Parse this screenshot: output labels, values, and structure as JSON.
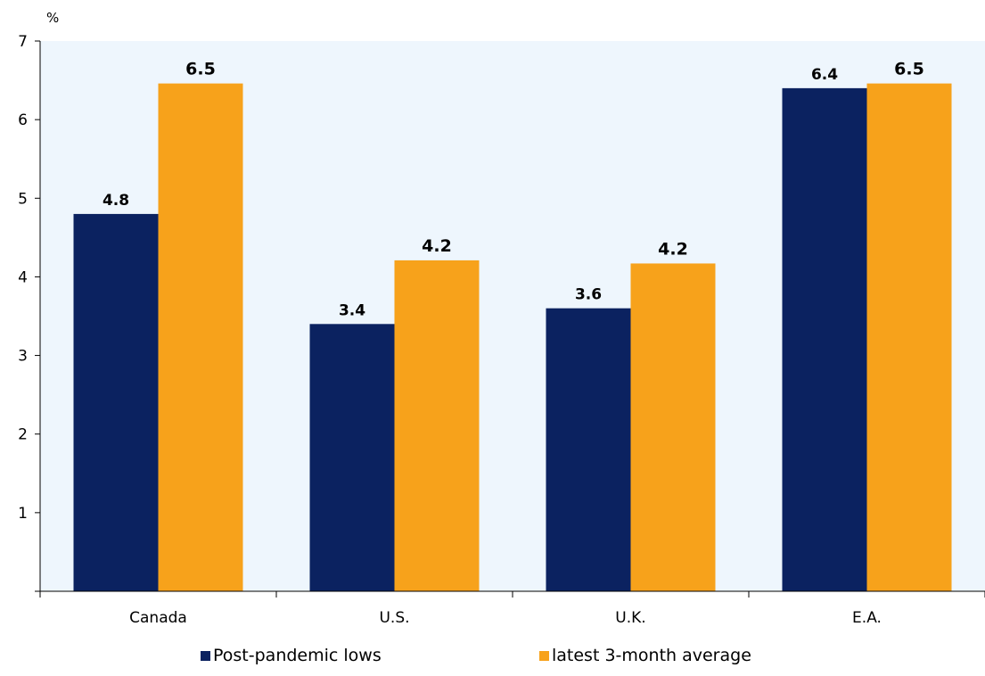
{
  "chart_data": {
    "type": "bar",
    "unit_label": "%",
    "categories": [
      "Canada",
      "U.S.",
      "U.K.",
      "E.A."
    ],
    "series": [
      {
        "name": "Post-pandemic lows",
        "values": [
          4.8,
          3.4,
          3.6,
          6.4
        ],
        "labels": [
          "4.8",
          "3.4",
          "3.6",
          "6.4"
        ],
        "color": "#0b2260"
      },
      {
        "name": "latest 3-month average",
        "values": [
          6.46,
          4.21,
          4.17,
          6.46
        ],
        "labels": [
          "6.5",
          "4.2",
          "4.2",
          "6.5"
        ],
        "color": "#f7a21b"
      }
    ],
    "ylim": [
      0,
      7
    ],
    "yticks": [
      1,
      2,
      3,
      4,
      5,
      6,
      7
    ],
    "ytick_labels": [
      "1",
      "2",
      "3",
      "4",
      "5",
      "6",
      "7"
    ],
    "grid": false,
    "legend_position": "bottom",
    "plot_background": "#eef6fd"
  }
}
